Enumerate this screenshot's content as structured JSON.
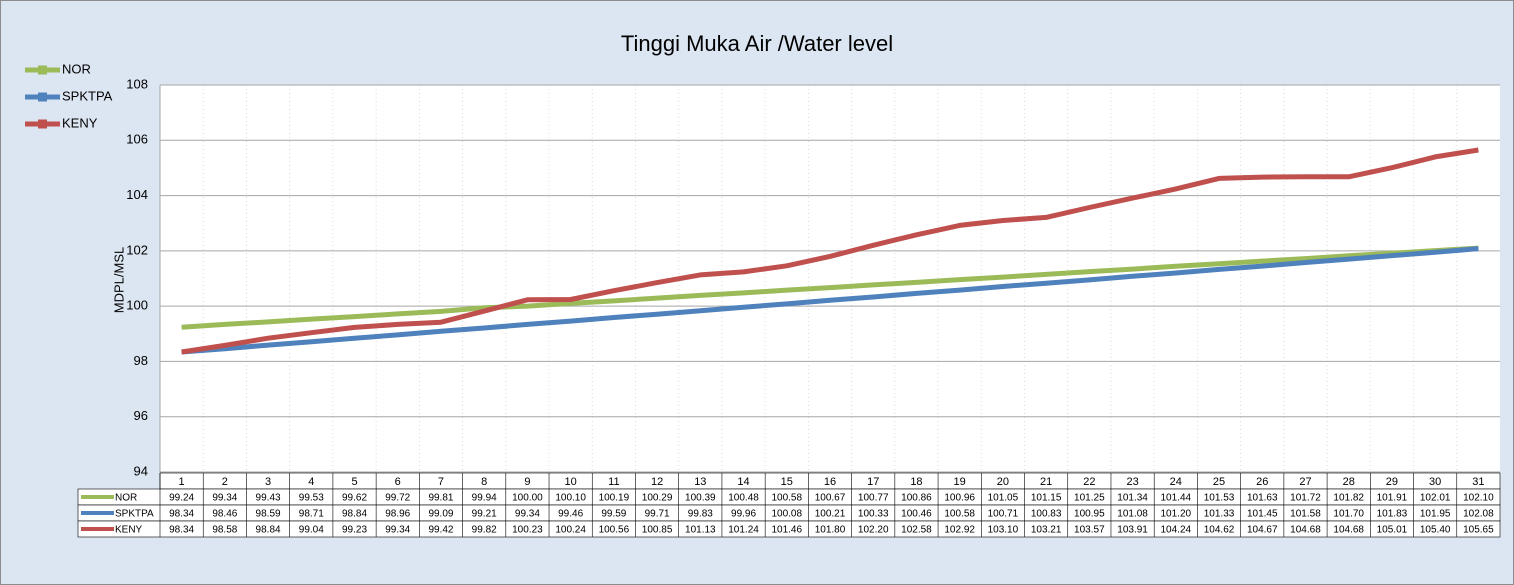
{
  "chart_data": {
    "type": "line",
    "title": "Tinggi Muka Air /Water level",
    "y_label": "MDPL/MSL",
    "categories": [
      "1",
      "2",
      "3",
      "4",
      "5",
      "6",
      "7",
      "8",
      "9",
      "10",
      "11",
      "12",
      "13",
      "14",
      "15",
      "16",
      "17",
      "18",
      "19",
      "20",
      "21",
      "22",
      "23",
      "24",
      "25",
      "26",
      "27",
      "28",
      "29",
      "30",
      "31"
    ],
    "ylim": [
      94,
      108
    ],
    "yticks": [
      94,
      96,
      98,
      100,
      102,
      104,
      106,
      108
    ],
    "grid": true,
    "legend": "top-left",
    "series": [
      {
        "name": "NOR",
        "color": "#9bbb59",
        "values": [
          99.24,
          99.34,
          99.43,
          99.53,
          99.62,
          99.72,
          99.81,
          99.94,
          100.0,
          100.1,
          100.19,
          100.29,
          100.39,
          100.48,
          100.58,
          100.67,
          100.77,
          100.86,
          100.96,
          101.05,
          101.15,
          101.25,
          101.34,
          101.44,
          101.53,
          101.63,
          101.72,
          101.82,
          101.91,
          102.01,
          102.1
        ],
        "value_labels": [
          "99.24",
          "99.34",
          "99.43",
          "99.53",
          "99.62",
          "99.72",
          "99.81",
          "99.94",
          "100.00",
          "100.10",
          "100.19",
          "100.29",
          "100.39",
          "100.48",
          "100.58",
          "100.67",
          "100.77",
          "100.86",
          "100.96",
          "101.05",
          "101.15",
          "101.25",
          "101.34",
          "101.44",
          "101.53",
          "101.63",
          "101.72",
          "101.82",
          "101.91",
          "102.01",
          "102.10"
        ]
      },
      {
        "name": "SPKTPA",
        "color": "#4f81bd",
        "values": [
          98.34,
          98.46,
          98.59,
          98.71,
          98.84,
          98.96,
          99.09,
          99.21,
          99.34,
          99.46,
          99.59,
          99.71,
          99.83,
          99.96,
          100.08,
          100.21,
          100.33,
          100.46,
          100.58,
          100.71,
          100.83,
          100.95,
          101.08,
          101.2,
          101.33,
          101.45,
          101.58,
          101.7,
          101.83,
          101.95,
          102.08
        ],
        "value_labels": [
          "98.34",
          "98.46",
          "98.59",
          "98.71",
          "98.84",
          "98.96",
          "99.09",
          "99.21",
          "99.34",
          "99.46",
          "99.59",
          "99.71",
          "99.83",
          "99.96",
          "100.08",
          "100.21",
          "100.33",
          "100.46",
          "100.58",
          "100.71",
          "100.83",
          "100.95",
          "101.08",
          "101.20",
          "101.33",
          "101.45",
          "101.58",
          "101.70",
          "101.83",
          "101.95",
          "102.08"
        ]
      },
      {
        "name": "KENY",
        "color": "#c0504d",
        "values": [
          98.34,
          98.58,
          98.84,
          99.04,
          99.23,
          99.34,
          99.42,
          99.82,
          100.23,
          100.24,
          100.56,
          100.85,
          101.13,
          101.24,
          101.46,
          101.8,
          102.2,
          102.58,
          102.92,
          103.1,
          103.21,
          103.57,
          103.91,
          104.24,
          104.62,
          104.67,
          104.68,
          104.68,
          105.01,
          105.4,
          105.65
        ],
        "value_labels": [
          "98.34",
          "98.58",
          "98.84",
          "99.04",
          "99.23",
          "99.34",
          "99.42",
          "99.82",
          "100.23",
          "100.24",
          "100.56",
          "100.85",
          "101.13",
          "101.24",
          "101.46",
          "101.80",
          "102.20",
          "102.58",
          "102.92",
          "103.10",
          "103.21",
          "103.57",
          "103.91",
          "104.24",
          "104.62",
          "104.67",
          "104.68",
          "104.68",
          "105.01",
          "105.40",
          "105.65"
        ]
      }
    ]
  }
}
